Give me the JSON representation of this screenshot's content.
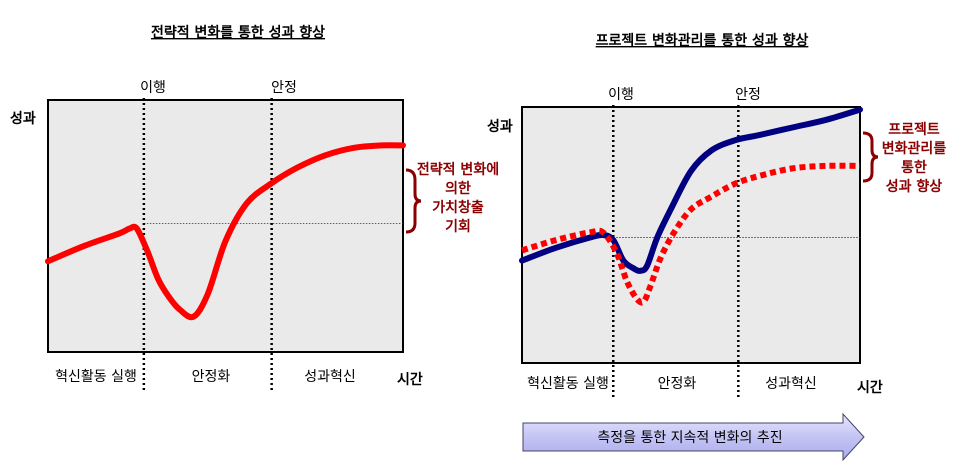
{
  "chart_data": [
    {
      "type": "line",
      "title": "전략적 변화를 통한 성과 향상",
      "ylabel": "성과",
      "xlabel": "시간",
      "xlim": [
        0,
        100
      ],
      "ylim": [
        0,
        100
      ],
      "phase_markers": [
        {
          "label": "이행",
          "x": 27
        },
        {
          "label": "안정",
          "x": 63
        }
      ],
      "baseline": 51,
      "phases": [
        "혁신활동 실행",
        "안정화",
        "성과혁신"
      ],
      "series": [
        {
          "name": "성과",
          "color": "#ff0000",
          "style": "solid",
          "x": [
            0,
            10,
            20,
            23,
            25,
            28,
            31,
            34,
            37,
            41,
            45,
            50,
            56,
            63,
            70,
            78,
            86,
            94,
            100
          ],
          "y": [
            36,
            42,
            47,
            49,
            49,
            40,
            29,
            22,
            17,
            14,
            23,
            44,
            59,
            67,
            73,
            78,
            81,
            82,
            82
          ]
        }
      ],
      "annotation": {
        "lines": [
          "전략적 변화에",
          "의한",
          "가치창출",
          "기회"
        ],
        "from": 51,
        "to": 82
      }
    },
    {
      "type": "line",
      "title": "프로젝트 변화관리를 통한 성과 향상",
      "ylabel": "성과",
      "xlabel": "시간",
      "xlim": [
        0,
        100
      ],
      "ylim": [
        0,
        100
      ],
      "phase_markers": [
        {
          "label": "이행",
          "x": 27
        },
        {
          "label": "안정",
          "x": 64
        }
      ],
      "baseline": 49,
      "phases": [
        "혁신활동 실행",
        "안정화",
        "성과혁신"
      ],
      "series": [
        {
          "name": "프로젝트 변화관리",
          "color": "#000080",
          "style": "solid",
          "x": [
            0,
            10,
            20,
            24,
            27,
            30,
            33,
            35,
            37,
            40,
            44,
            50,
            56,
            63,
            70,
            80,
            90,
            100
          ],
          "y": [
            40,
            45,
            49,
            50,
            48,
            40,
            37,
            36,
            38,
            49,
            60,
            75,
            83,
            87,
            89,
            92,
            95,
            99
          ]
        },
        {
          "name": "전략적 변화",
          "color": "#ff0000",
          "style": "dotted",
          "x": [
            0,
            10,
            20,
            24,
            28,
            31,
            34,
            36,
            38,
            41,
            45,
            50,
            56,
            63,
            70,
            80,
            90,
            100
          ],
          "y": [
            44,
            48,
            51,
            51,
            43,
            32,
            25,
            24,
            30,
            41,
            51,
            60,
            65,
            70,
            73,
            76,
            77,
            77
          ]
        }
      ],
      "annotation": {
        "lines": [
          "프로젝트",
          "변화관리를",
          "통한",
          "성과 향상"
        ],
        "from": 77,
        "to": 99
      },
      "footer_arrow": "측정을 통한 지속적 변화의 추진"
    }
  ]
}
